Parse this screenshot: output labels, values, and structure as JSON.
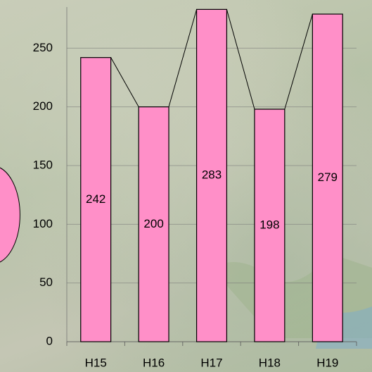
{
  "chart_data": {
    "type": "bar",
    "categories": [
      "H15",
      "H16",
      "H17",
      "H18",
      "H19"
    ],
    "values": [
      242,
      200,
      283,
      198,
      279
    ],
    "color": "#ff8fc8",
    "ylim": [
      0,
      285
    ],
    "yticks": [
      0,
      50,
      100,
      150,
      200,
      250
    ],
    "grid": true
  }
}
